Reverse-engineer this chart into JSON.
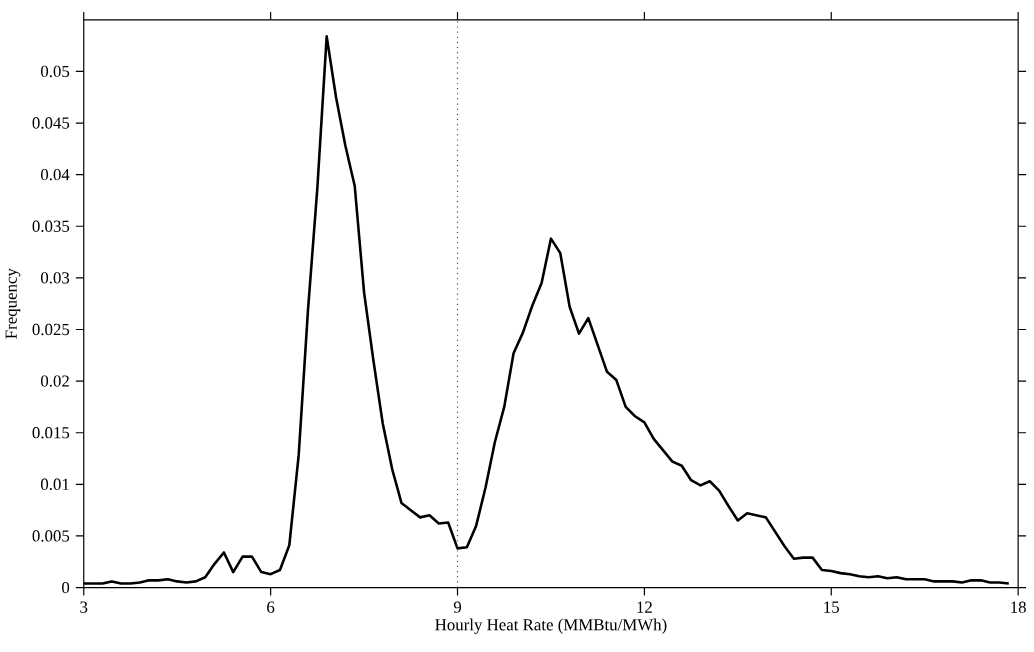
{
  "chart_data": {
    "type": "line",
    "xlabel": "Hourly Heat Rate (MMBtu/MWh)",
    "ylabel": "Frequency",
    "x": [
      3.0,
      3.15,
      3.3,
      3.45,
      3.6,
      3.75,
      3.9,
      4.05,
      4.2,
      4.35,
      4.5,
      4.65,
      4.8,
      4.95,
      5.1,
      5.25,
      5.4,
      5.55,
      5.7,
      5.85,
      6.0,
      6.15,
      6.3,
      6.45,
      6.6,
      6.75,
      6.9,
      7.05,
      7.2,
      7.35,
      7.5,
      7.65,
      7.8,
      7.95,
      8.1,
      8.25,
      8.4,
      8.55,
      8.7,
      8.85,
      9.0,
      9.15,
      9.3,
      9.45,
      9.6,
      9.75,
      9.9,
      10.05,
      10.2,
      10.35,
      10.5,
      10.65,
      10.8,
      10.95,
      11.1,
      11.25,
      11.4,
      11.55,
      11.7,
      11.85,
      12.0,
      12.15,
      12.3,
      12.45,
      12.6,
      12.75,
      12.9,
      13.05,
      13.2,
      13.35,
      13.5,
      13.65,
      13.8,
      13.95,
      14.1,
      14.25,
      14.4,
      14.55,
      14.7,
      14.85,
      15.0,
      15.15,
      15.3,
      15.45,
      15.6,
      15.75,
      15.9,
      16.05,
      16.2,
      16.35,
      16.5,
      16.65,
      16.8,
      16.95,
      17.1,
      17.25,
      17.4,
      17.55,
      17.7,
      17.85
    ],
    "series": [
      {
        "color": "#000000",
        "values": [
          0.0004,
          0.0004,
          0.0004,
          0.0006,
          0.0004,
          0.0004,
          0.0005,
          0.0007,
          0.0007,
          0.0008,
          0.0006,
          0.0005,
          0.0006,
          0.001,
          0.0023,
          0.0034,
          0.0015,
          0.003,
          0.003,
          0.0015,
          0.0013,
          0.0017,
          0.0041,
          0.0128,
          0.0269,
          0.0387,
          0.0534,
          0.0475,
          0.0428,
          0.0389,
          0.0286,
          0.022,
          0.0159,
          0.0115,
          0.0082,
          0.0075,
          0.0068,
          0.007,
          0.0062,
          0.0063,
          0.0038,
          0.0039,
          0.006,
          0.0097,
          0.0141,
          0.0175,
          0.0227,
          0.0247,
          0.0273,
          0.0295,
          0.0338,
          0.0324,
          0.0272,
          0.0246,
          0.0261,
          0.0235,
          0.0209,
          0.0201,
          0.0175,
          0.0166,
          0.016,
          0.0144,
          0.0133,
          0.0122,
          0.0118,
          0.0104,
          0.0099,
          0.0103,
          0.0094,
          0.0079,
          0.0065,
          0.0072,
          0.007,
          0.0068,
          0.0054,
          0.004,
          0.0028,
          0.0029,
          0.0029,
          0.0017,
          0.0016,
          0.0014,
          0.0013,
          0.0011,
          0.001,
          0.0011,
          0.0009,
          0.001,
          0.0008,
          0.0008,
          0.0008,
          0.0006,
          0.0006,
          0.0006,
          0.0005,
          0.0007,
          0.0007,
          0.0005,
          0.0005,
          0.0004
        ]
      }
    ],
    "xlim": [
      3,
      18
    ],
    "xticks": [
      3,
      6,
      9,
      12,
      15,
      18
    ],
    "ylim": [
      0,
      0.055
    ],
    "yticks": [
      0,
      0.005,
      0.01,
      0.015,
      0.02,
      0.025,
      0.03,
      0.035,
      0.04,
      0.045,
      0.05
    ],
    "ref_lines": [
      {
        "axis": "x",
        "value": 9,
        "color": "#ff0000",
        "line_style": "dotted"
      }
    ],
    "grid": false,
    "marker": "none",
    "line_style": "solid"
  }
}
